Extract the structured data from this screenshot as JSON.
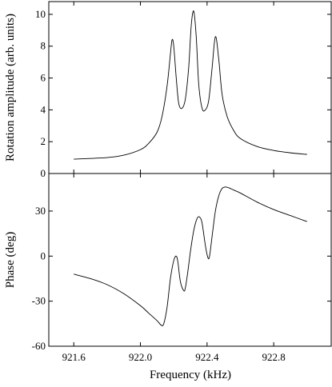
{
  "chart_data": {
    "type": "line",
    "xlabel": "Frequency (kHz)",
    "xlim": [
      921.45,
      923.15
    ],
    "x_ticks": [
      {
        "value": 921.6,
        "label": "921.6"
      },
      {
        "value": 922.0,
        "label": "922.0"
      },
      {
        "value": 922.4,
        "label": "922.4"
      },
      {
        "value": 922.8,
        "label": "922.8"
      }
    ],
    "panels": [
      {
        "ylabel": "Rotation amplitude (arb. units)",
        "ylim": [
          0,
          10.8
        ],
        "y_ticks": [
          {
            "value": 0,
            "label": "0"
          },
          {
            "value": 2,
            "label": "2"
          },
          {
            "value": 4,
            "label": "4"
          },
          {
            "value": 6,
            "label": "6"
          },
          {
            "value": 8,
            "label": "8"
          },
          {
            "value": 10,
            "label": "10"
          }
        ],
        "series": [
          {
            "x": [
              921.6,
              921.8,
              921.9,
              922.0,
              922.05,
              922.1,
              922.13,
              922.16,
              922.18,
              922.19,
              922.2,
              922.215,
              922.23,
              922.25,
              922.27,
              922.29,
              922.305,
              922.32,
              922.335,
              922.35,
              922.37,
              922.39,
              922.41,
              922.43,
              922.45,
              922.47,
              922.49,
              922.52,
              922.56,
              922.6,
              922.7,
              922.8,
              922.9,
              923.0
            ],
            "values": [
              0.9,
              1.0,
              1.15,
              1.5,
              1.9,
              2.6,
              3.6,
              5.5,
              7.5,
              8.4,
              8.0,
              6.0,
              4.4,
              4.1,
              4.7,
              6.7,
              9.3,
              10.2,
              8.6,
              5.6,
              4.1,
              4.0,
              4.6,
              6.6,
              8.6,
              7.2,
              5.0,
              3.6,
              2.7,
              2.2,
              1.7,
              1.45,
              1.3,
              1.2
            ]
          }
        ]
      },
      {
        "ylabel": "Phase (deg)",
        "ylim": [
          -60,
          55
        ],
        "y_ticks": [
          {
            "value": -60,
            "label": "-60"
          },
          {
            "value": -30,
            "label": "-30"
          },
          {
            "value": 0,
            "label": "0"
          },
          {
            "value": 30,
            "label": "30"
          }
        ],
        "series": [
          {
            "x": [
              921.6,
              921.7,
              921.8,
              921.9,
              922.0,
              922.05,
              922.1,
              922.125,
              922.14,
              922.16,
              922.18,
              922.2,
              922.215,
              922.225,
              922.24,
              922.26,
              922.27,
              922.285,
              922.3,
              922.32,
              922.34,
              922.355,
              922.37,
              922.39,
              922.405,
              922.415,
              922.43,
              922.45,
              922.47,
              922.49,
              922.51,
              922.53,
              922.56,
              922.6,
              922.7,
              922.8,
              922.9,
              923.0
            ],
            "values": [
              -12,
              -15,
              -19,
              -25,
              -33,
              -38,
              -43,
              -46,
              -45,
              -34,
              -15,
              -3,
              0,
              -4,
              -17,
              -23,
              -21,
              -10,
              3,
              17,
              25,
              26,
              22,
              7,
              -1,
              0,
              13,
              30,
              40,
              45,
              46,
              45.5,
              44,
              42,
              36,
              31,
              27,
              23
            ]
          }
        ]
      }
    ]
  }
}
